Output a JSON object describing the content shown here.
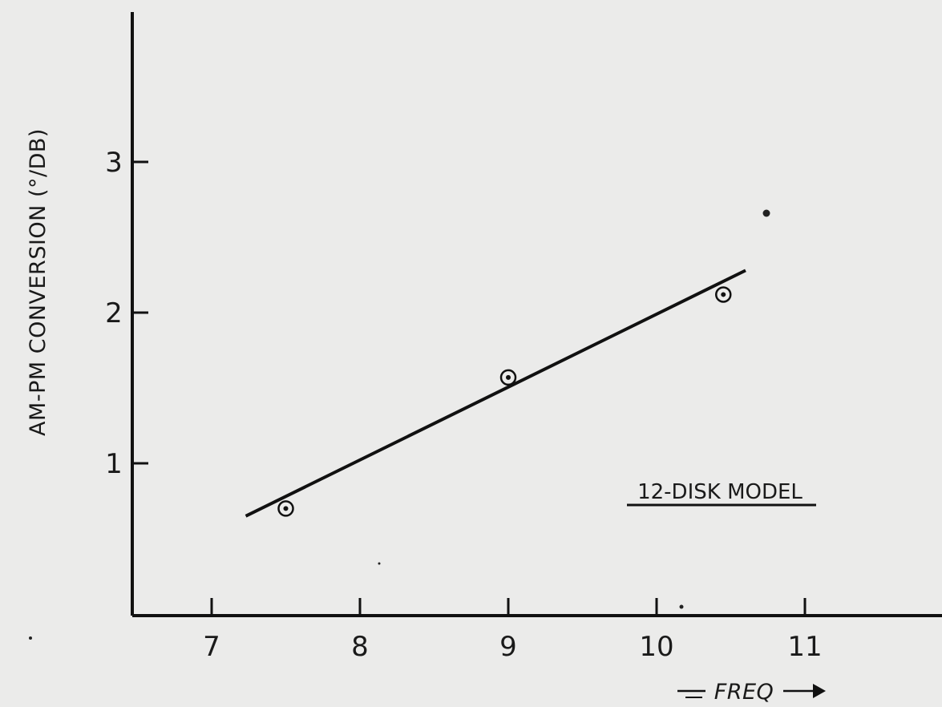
{
  "chart_data": {
    "type": "scatter",
    "xlabel": "FREQ",
    "ylabel": "AM-PM CONVERSION (°/DB)",
    "xlim": [
      6.5,
      12
    ],
    "ylim": [
      0,
      4
    ],
    "x_ticks": [
      "7",
      "8",
      "9",
      "10",
      "11"
    ],
    "y_ticks": [
      "1",
      "2",
      "3"
    ],
    "grid": false,
    "series": [
      {
        "marker": "circled-dot",
        "points": [
          {
            "x": 7.5,
            "y": 0.7
          },
          {
            "x": 9.0,
            "y": 1.57
          },
          {
            "x": 10.45,
            "y": 2.12
          }
        ]
      }
    ],
    "fit_line": {
      "x": [
        7.23,
        10.6
      ],
      "y": [
        0.65,
        2.28
      ]
    },
    "annotation": "12-DISK MODEL"
  }
}
